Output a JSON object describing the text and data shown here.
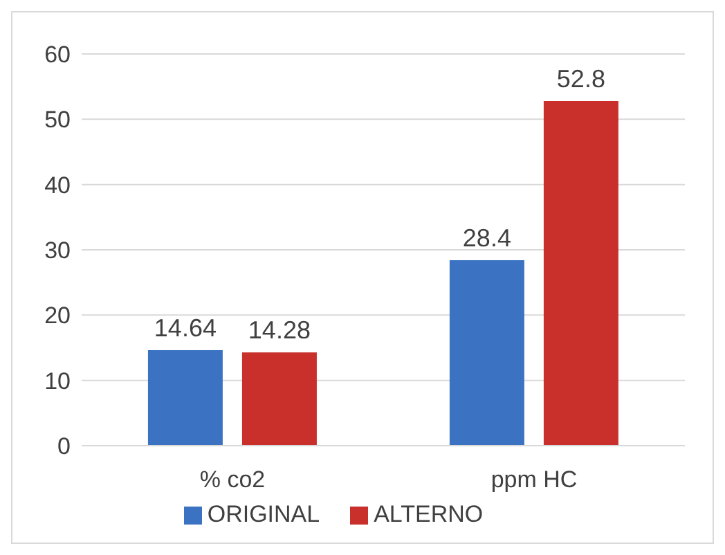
{
  "chart_data": {
    "type": "bar",
    "categories": [
      "% co2",
      "ppm HC"
    ],
    "series": [
      {
        "name": "ORIGINAL",
        "color": "#3b73c2",
        "values": [
          14.64,
          28.4
        ]
      },
      {
        "name": "ALTERNO",
        "color": "#c9302c",
        "values": [
          14.28,
          52.8
        ]
      }
    ],
    "ylim": [
      0,
      60
    ],
    "yticks": [
      0,
      10,
      20,
      30,
      40,
      50,
      60
    ],
    "grid": "y",
    "data_labels": true,
    "legend": "bottom"
  }
}
